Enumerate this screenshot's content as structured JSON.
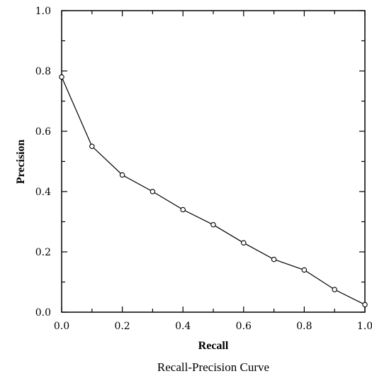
{
  "chart_data": {
    "type": "line",
    "title": "Recall-Precision Curve",
    "xlabel": "Recall",
    "ylabel": "Precision",
    "xlim": [
      0.0,
      1.0
    ],
    "ylim": [
      0.0,
      1.0
    ],
    "xticks": [
      "0.0",
      "0.2",
      "0.4",
      "0.6",
      "0.8",
      "1.0"
    ],
    "yticks": [
      "0.0",
      "0.2",
      "0.4",
      "0.6",
      "0.8",
      "1.0"
    ],
    "grid": false,
    "series": [
      {
        "x": [
          0.0,
          0.1,
          0.2,
          0.3,
          0.4,
          0.5,
          0.6,
          0.7,
          0.8,
          0.9,
          1.0
        ],
        "y": [
          0.78,
          0.55,
          0.455,
          0.4,
          0.34,
          0.29,
          0.23,
          0.175,
          0.14,
          0.075,
          0.025
        ],
        "marker": "open-circle",
        "color": "#000000"
      }
    ]
  }
}
